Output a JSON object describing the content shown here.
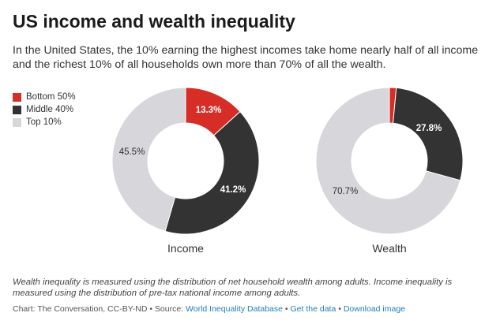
{
  "title": "US income and wealth inequality",
  "subtitle": "In the United States, the 10% earning the highest incomes take home nearly half of all income and the richest 10% of all households own more than 70% of all the wealth.",
  "colors": {
    "bottom50": "#d62d27",
    "middle40": "#333333",
    "top10": "#d7d7db"
  },
  "chart_data": {
    "type": "pie",
    "legend_position": "top-left",
    "legend": [
      "Bottom 50%",
      "Middle 40%",
      "Top 10%"
    ],
    "charts": [
      {
        "label": "Income",
        "slices": [
          {
            "name": "Bottom 50%",
            "value": 13.3,
            "label": "13.3%"
          },
          {
            "name": "Middle 40%",
            "value": 41.2,
            "label": "41.2%"
          },
          {
            "name": "Top 10%",
            "value": 45.5,
            "label": "45.5%"
          }
        ]
      },
      {
        "label": "Wealth",
        "slices": [
          {
            "name": "Bottom 50%",
            "value": 1.5,
            "label": ""
          },
          {
            "name": "Middle 40%",
            "value": 27.8,
            "label": "27.8%"
          },
          {
            "name": "Top 10%",
            "value": 70.7,
            "label": "70.7%"
          }
        ]
      }
    ]
  },
  "note": "Wealth inequality is measured using the distribution of net household wealth among adults. Income inequality is measured using the distribution of pre-tax national income among adults.",
  "footer": {
    "credit": "Chart: The Conversation, CC-BY-ND • Source: ",
    "source_link": "World Inequality Database",
    "sep1": " • ",
    "get_data": "Get the data",
    "sep2": " • ",
    "download": "Download image"
  }
}
